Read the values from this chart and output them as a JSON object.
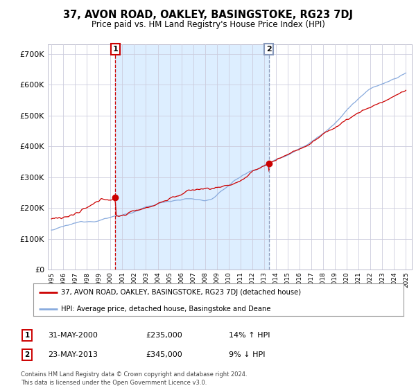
{
  "title": "37, AVON ROAD, OAKLEY, BASINGSTOKE, RG23 7DJ",
  "subtitle": "Price paid vs. HM Land Registry's House Price Index (HPI)",
  "ylim": [
    0,
    730000
  ],
  "yticks": [
    0,
    100000,
    200000,
    300000,
    400000,
    500000,
    600000,
    700000
  ],
  "line1_color": "#cc0000",
  "line2_color": "#88aadd",
  "event1_x": 2000.42,
  "event1_y": 235000,
  "event1_label": "1",
  "event1_vline_color": "#cc0000",
  "event2_x": 2013.39,
  "event2_y": 345000,
  "event2_label": "2",
  "event2_vline_color": "#8899bb",
  "shade_color": "#ddeeff",
  "legend_line1": "37, AVON ROAD, OAKLEY, BASINGSTOKE, RG23 7DJ (detached house)",
  "legend_line2": "HPI: Average price, detached house, Basingstoke and Deane",
  "info1_num": "1",
  "info1_date": "31-MAY-2000",
  "info1_price": "£235,000",
  "info1_hpi": "14% ↑ HPI",
  "info2_num": "2",
  "info2_date": "23-MAY-2013",
  "info2_price": "£345,000",
  "info2_hpi": "9% ↓ HPI",
  "footer": "Contains HM Land Registry data © Crown copyright and database right 2024.\nThis data is licensed under the Open Government Licence v3.0.",
  "bg_color": "#ffffff",
  "grid_color": "#ccccdd",
  "xlim_left": 1994.7,
  "xlim_right": 2025.5
}
